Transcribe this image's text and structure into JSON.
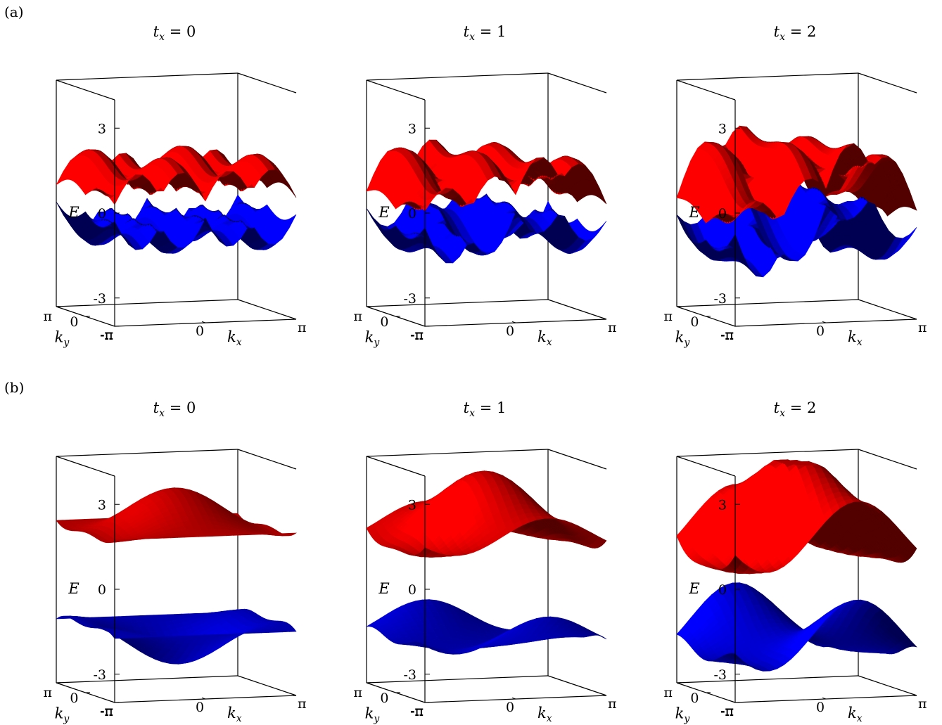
{
  "figure": {
    "panel_labels": [
      "(a)",
      "(b)"
    ],
    "axis": {
      "z_label": "E",
      "x_label_base": "k",
      "x_label_sub": "x",
      "y_label_base": "k",
      "y_label_sub": "y",
      "z_ticks": [
        "3",
        "0",
        "-3"
      ],
      "x_ticks": [
        "-π",
        "0",
        "π"
      ],
      "y_ticks": [
        "π",
        "0",
        "-π"
      ]
    }
  },
  "colors": {
    "upper_band": "#ff0000",
    "upper_band_dark": "#330000",
    "lower_band": "#0000ff",
    "lower_band_dark": "#000033"
  },
  "chart_data": [
    {
      "type": "surface",
      "row": "(a)",
      "title_var": "t",
      "title_sub": "x",
      "title_value": "= 0",
      "t_x": 0,
      "gap": 0,
      "zlim": [
        -4,
        4
      ],
      "xlim": [
        -3.1416,
        3.1416
      ],
      "ylim": [
        -3.1416,
        3.1416
      ]
    },
    {
      "type": "surface",
      "row": "(a)",
      "title_var": "t",
      "title_sub": "x",
      "title_value": "= 1",
      "t_x": 1,
      "gap": 0,
      "zlim": [
        -4,
        4
      ],
      "xlim": [
        -3.1416,
        3.1416
      ],
      "ylim": [
        -3.1416,
        3.1416
      ]
    },
    {
      "type": "surface",
      "row": "(a)",
      "title_var": "t",
      "title_sub": "x",
      "title_value": "= 2",
      "t_x": 2,
      "gap": 0,
      "zlim": [
        -4,
        4
      ],
      "xlim": [
        -3.1416,
        3.1416
      ],
      "ylim": [
        -3.1416,
        3.1416
      ]
    },
    {
      "type": "surface",
      "row": "(b)",
      "title_var": "t",
      "title_sub": "x",
      "title_value": "= 0",
      "t_x": 0,
      "gap": 1,
      "zlim": [
        -4,
        4
      ],
      "xlim": [
        -3.1416,
        3.1416
      ],
      "ylim": [
        -3.1416,
        3.1416
      ]
    },
    {
      "type": "surface",
      "row": "(b)",
      "title_var": "t",
      "title_sub": "x",
      "title_value": "= 1",
      "t_x": 1,
      "gap": 1,
      "zlim": [
        -4,
        4
      ],
      "xlim": [
        -3.1416,
        3.1416
      ],
      "ylim": [
        -3.1416,
        3.1416
      ]
    },
    {
      "type": "surface",
      "row": "(b)",
      "title_var": "t",
      "title_sub": "x",
      "title_value": "= 2",
      "t_x": 2,
      "gap": 1,
      "zlim": [
        -4,
        4
      ],
      "xlim": [
        -3.1416,
        3.1416
      ],
      "ylim": [
        -3.1416,
        3.1416
      ]
    }
  ]
}
